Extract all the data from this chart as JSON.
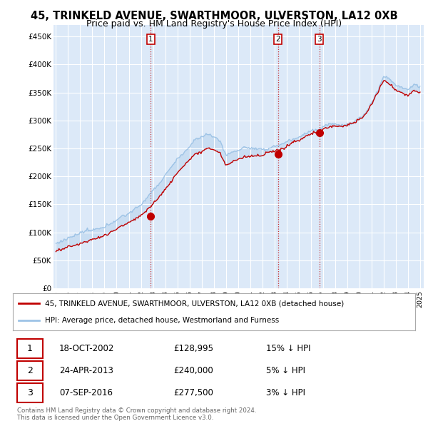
{
  "title": "45, TRINKELD AVENUE, SWARTHMOOR, ULVERSTON, LA12 0XB",
  "subtitle": "Price paid vs. HM Land Registry's House Price Index (HPI)",
  "ylim": [
    0,
    470000
  ],
  "yticks": [
    0,
    50000,
    100000,
    150000,
    200000,
    250000,
    300000,
    350000,
    400000,
    450000
  ],
  "ytick_labels": [
    "£0",
    "£50K",
    "£100K",
    "£150K",
    "£200K",
    "£250K",
    "£300K",
    "£350K",
    "£400K",
    "£450K"
  ],
  "red_line_label": "45, TRINKELD AVENUE, SWARTHMOOR, ULVERSTON, LA12 0XB (detached house)",
  "blue_line_label": "HPI: Average price, detached house, Westmorland and Furness",
  "transactions": [
    {
      "num": 1,
      "date": "18-OCT-2002",
      "price": "£128,995",
      "hpi_rel": "15% ↓ HPI",
      "year": 2002.8
    },
    {
      "num": 2,
      "date": "24-APR-2013",
      "price": "£240,000",
      "hpi_rel": "5% ↓ HPI",
      "year": 2013.3
    },
    {
      "num": 3,
      "date": "07-SEP-2016",
      "price": "£277,500",
      "hpi_rel": "3% ↓ HPI",
      "year": 2016.7
    }
  ],
  "transaction_values": [
    128995,
    240000,
    277500
  ],
  "footer": "Contains HM Land Registry data © Crown copyright and database right 2024.\nThis data is licensed under the Open Government Licence v3.0.",
  "bg_color": "#ffffff",
  "plot_bg": "#dce9f8",
  "red_color": "#c00000",
  "blue_color": "#9dc3e6",
  "grid_color": "#ffffff",
  "title_fontsize": 10.5,
  "subtitle_fontsize": 9
}
